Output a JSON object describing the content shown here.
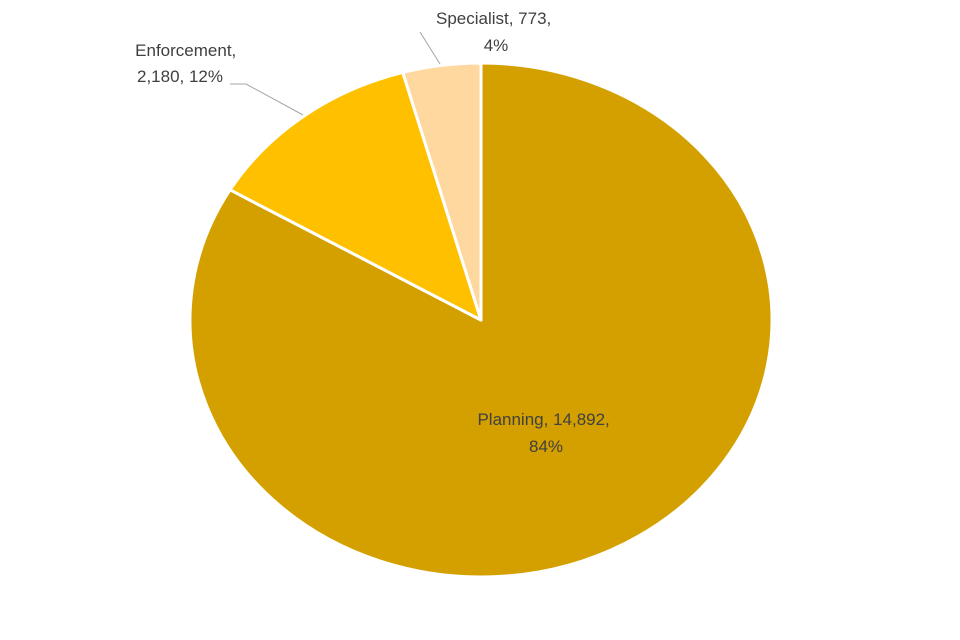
{
  "chart_data": {
    "type": "pie",
    "title": "",
    "start_angle_deg": 0,
    "direction": "clockwise",
    "series": [
      {
        "name": "",
        "values": [
          14892,
          2180,
          773
        ]
      }
    ],
    "slices": [
      {
        "category": "Planning",
        "value": 14892,
        "percent": 84,
        "color": "#D4A000",
        "label_lines": [
          "Planning, 14,892,",
          "84%"
        ]
      },
      {
        "category": "Enforcement",
        "value": 2180,
        "percent": 12,
        "color": "#FFC000",
        "label_lines": [
          "Enforcement,",
          "2,180, 12%"
        ]
      },
      {
        "category": "Specialist",
        "value": 773,
        "percent": 4,
        "color": "#FFD8A0",
        "label_lines": [
          "Specialist, 773,",
          "4%"
        ]
      }
    ],
    "legend": "none",
    "slice_border_color": "#FFFFFF",
    "leader_line_color": "#A6A6A6"
  }
}
